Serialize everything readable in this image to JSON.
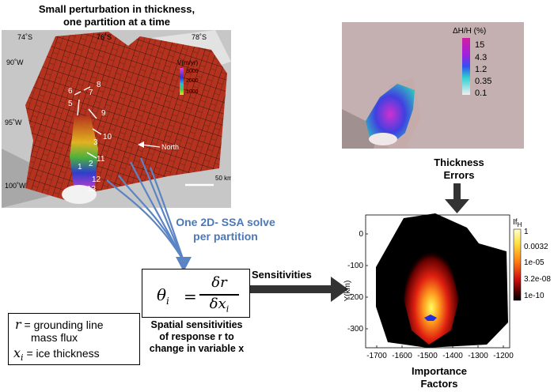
{
  "left_panel": {
    "title_line1": "Small perturbation in thickness,",
    "title_line2": "one partition at a time",
    "lat_labels": [
      "74˚S",
      "76˚S",
      "78˚S"
    ],
    "lon_labels": [
      "90˚W",
      "95˚W",
      "100˚W"
    ],
    "velocity_title": "V(m/yr)",
    "velocity_ticks": [
      "3000",
      "2000",
      "1000"
    ],
    "partition_numbers": [
      "1",
      "2",
      "3",
      "5",
      "6",
      "7",
      "8",
      "9",
      "10",
      "11",
      "12",
      "13"
    ],
    "north_label": "North",
    "scale_label": "50 km"
  },
  "top_right_panel": {
    "colorbar_title": "ΔH/H (%)",
    "colorbar_ticks": [
      "15",
      "4.3",
      "1.2",
      "0.35",
      "0.1"
    ]
  },
  "thickness_errors": {
    "line1": "Thickness",
    "line2": "Errors"
  },
  "ssa_solve": {
    "line1": "One 2D- SSA solve",
    "line2": "per partition"
  },
  "equation": {
    "lhs": "θ",
    "lhs_sub": "i",
    "numerator": "δr",
    "denominator": "δx",
    "den_sub": "i"
  },
  "sensitivities_label": "Sensitivities",
  "legend": {
    "r_symbol": "r",
    "r_desc_line1": "= grounding line",
    "r_desc_line2": "mass flux",
    "x_symbol": "x",
    "x_sub": "i",
    "x_desc": "= ice thickness"
  },
  "spatial_caption": {
    "line1": "Spatial sensitivities",
    "line2": "of response r to",
    "line3": "change in variable x"
  },
  "importance_plot": {
    "ylabel": "Y(km)",
    "xlabel_line1": "Importance",
    "xlabel_line2": "Factors",
    "x_ticks": [
      "-1700",
      "-1600",
      "-1500",
      "-1400",
      "-1300",
      "-1200"
    ],
    "y_ticks": [
      "0",
      "-100",
      "-200",
      "-300"
    ],
    "colorbar_title": "If",
    "colorbar_title_sub": "H",
    "colorbar_ticks": [
      "1",
      "0.0032",
      "1e-05",
      "3.2e-08",
      "1e-10"
    ]
  },
  "colors": {
    "blue_arrow": "#5b84c4",
    "dark_arrow": "#333333",
    "map_red": "#b5321e"
  }
}
